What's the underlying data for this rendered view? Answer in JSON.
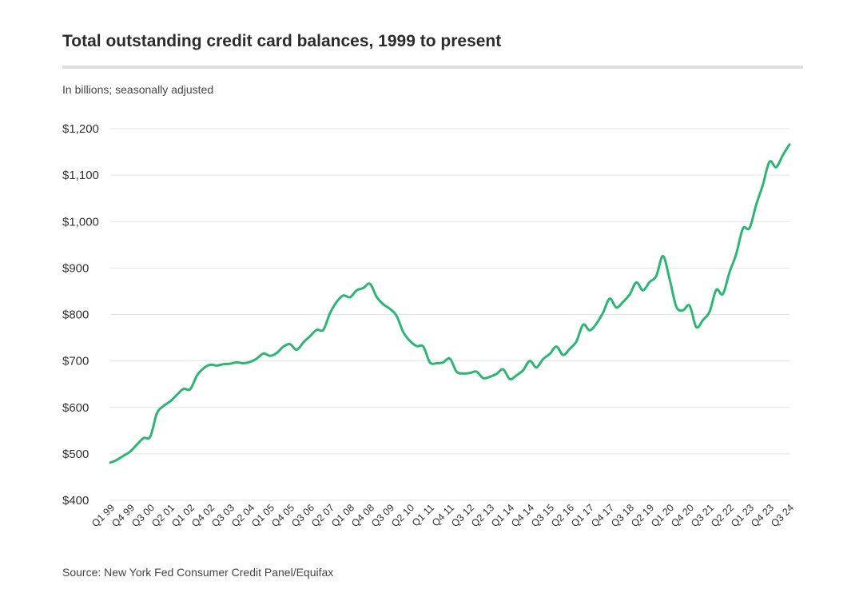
{
  "chart_data": {
    "type": "line",
    "title": "Total outstanding credit card balances, 1999 to present",
    "subtitle": "In billions; seasonally adjusted",
    "source": "Source: New York Fed Consumer Credit Panel/Equifax",
    "xlabel": "",
    "ylabel": "",
    "ylim": [
      400,
      1200
    ],
    "yticks": [
      1200,
      1100,
      1000,
      900,
      800,
      700,
      600,
      500,
      400
    ],
    "ytick_labels": [
      "$1,200",
      "$1,100",
      "$1,000",
      "$900",
      "$800",
      "$700",
      "$600",
      "$500",
      "$400"
    ],
    "grid": true,
    "line_color": "#2bb673",
    "x_tick_labels": [
      "Q1 99",
      "Q4 99",
      "Q3 00",
      "Q2 01",
      "Q1 02",
      "Q4 02",
      "Q3 03",
      "Q2 04",
      "Q1 05",
      "Q4 05",
      "Q3 06",
      "Q2 07",
      "Q1 08",
      "Q4 08",
      "Q3 09",
      "Q2 10",
      "Q1 11",
      "Q4 11",
      "Q3 12",
      "Q2 13",
      "Q1 14",
      "Q4 14",
      "Q3 15",
      "Q2 16",
      "Q1 17",
      "Q4 17",
      "Q3 18",
      "Q2 19",
      "Q1 20",
      "Q4 20",
      "Q3 21",
      "Q2 22",
      "Q1 23",
      "Q4 23",
      "Q3 24"
    ],
    "values": [
      481,
      487,
      496,
      505,
      520,
      534,
      537,
      587,
      603,
      613,
      627,
      640,
      639,
      668,
      684,
      692,
      690,
      693,
      694,
      697,
      695,
      698,
      705,
      716,
      711,
      717,
      731,
      736,
      724,
      740,
      753,
      767,
      767,
      803,
      827,
      841,
      837,
      852,
      857,
      866,
      838,
      822,
      812,
      797,
      762,
      743,
      732,
      731,
      697,
      695,
      697,
      705,
      677,
      673,
      674,
      677,
      663,
      666,
      672,
      682,
      661,
      669,
      680,
      700,
      686,
      704,
      715,
      731,
      713,
      726,
      742,
      778,
      766,
      780,
      804,
      834,
      815,
      827,
      843,
      869,
      852,
      870,
      883,
      926,
      876,
      817,
      809,
      819,
      773,
      788,
      806,
      853,
      844,
      891,
      930,
      985,
      986,
      1036,
      1079,
      1129,
      1117,
      1143,
      1166
    ]
  }
}
